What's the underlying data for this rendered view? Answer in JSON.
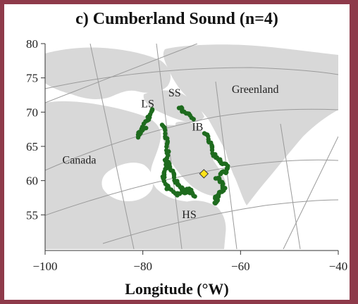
{
  "chart_data": {
    "type": "map",
    "title": "c) Cumberland Sound (n=4)",
    "xlabel": "Longitude (°W)",
    "ylabel": "",
    "x_ticks": [
      "−100",
      "−80",
      "−60",
      "−40"
    ],
    "y_ticks": [
      "80",
      "75",
      "70",
      "65",
      "60",
      "55"
    ],
    "xlim": [
      -100,
      -40
    ],
    "ylim": [
      50,
      80
    ],
    "region_labels": [
      {
        "text": "Greenland",
        "lon": -57,
        "lat": 72.8
      },
      {
        "text": "Canada",
        "lon": -93,
        "lat": 62.5
      },
      {
        "text": "SS",
        "lon": -73.5,
        "lat": 72.3
      },
      {
        "text": "LS",
        "lon": -79,
        "lat": 70.7
      },
      {
        "text": "IB",
        "lon": -68.8,
        "lat": 67.3
      },
      {
        "text": "HS",
        "lon": -70.5,
        "lat": 54.5
      }
    ],
    "tag_location": {
      "lon": -67.5,
      "lat": 61.0
    },
    "track_color": "#1e6b1e",
    "tag_color": "#ffe21a",
    "land_color": "#d9d9d9"
  }
}
